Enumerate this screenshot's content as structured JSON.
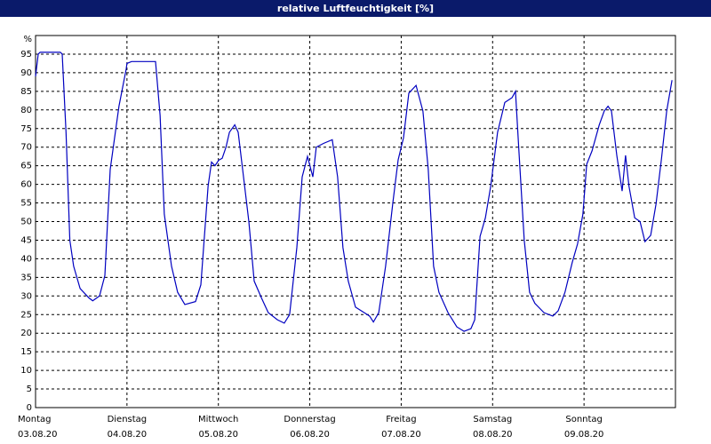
{
  "chart_data": {
    "type": "line",
    "title": "relative Luftfeuchtigkeit [%]",
    "y_label": "%",
    "xlim": [
      0,
      168
    ],
    "ylim": [
      0,
      100
    ],
    "yticks": [
      0,
      5,
      10,
      15,
      20,
      25,
      30,
      35,
      40,
      45,
      50,
      55,
      60,
      65,
      70,
      75,
      80,
      85,
      90,
      95
    ],
    "xticks": [
      {
        "value": 0,
        "label": "Montag",
        "date": "03.08.20"
      },
      {
        "value": 24,
        "label": "Dienstag",
        "date": "04.08.20"
      },
      {
        "value": 48,
        "label": "Mittwoch",
        "date": "05.08.20"
      },
      {
        "value": 72,
        "label": "Donnerstag",
        "date": "06.08.20"
      },
      {
        "value": 96,
        "label": "Freitag",
        "date": "07.08.20"
      },
      {
        "value": 120,
        "label": "Samstag",
        "date": "08.08.20"
      },
      {
        "value": 144,
        "label": "Sonntag",
        "date": "09.08.20"
      }
    ],
    "grid": true,
    "series": [
      {
        "color": "#0000c0",
        "x": [
          0,
          0.7,
          1.2,
          6.5,
          7,
          8,
          9,
          10,
          11.7,
          14,
          15,
          16.8,
          18.2,
          19.6,
          21.9,
          23.8,
          24,
          25.2,
          31.5,
          32.7,
          33.8,
          35.7,
          37.3,
          39.2,
          42,
          43.4,
          45.3,
          46.2,
          47.1,
          48.1,
          49,
          50,
          50.9,
          52.3,
          53.2,
          54.6,
          56,
          57.4,
          59.3,
          61.1,
          63.5,
          65.3,
          66.7,
          68.6,
          70,
          71.4,
          72.8,
          73.7,
          75.6,
          77.9,
          79.3,
          80.7,
          82.1,
          84,
          86.3,
          87.7,
          88.7,
          90.1,
          91.9,
          93.8,
          95.2,
          96.6,
          98,
          99.9,
          101.7,
          103.1,
          104.5,
          105.9,
          108.3,
          110.6,
          112.5,
          114.3,
          115.3,
          116.7,
          118.1,
          119.5,
          121.3,
          123.2,
          125.1,
          126,
          126.9,
          128.3,
          129.7,
          131.1,
          133.5,
          135.8,
          137.2,
          139,
          140.9,
          142.3,
          143.7,
          144.7,
          146.1,
          148,
          149.3,
          150.3,
          151.2,
          152.6,
          154,
          154.9,
          155.8,
          157.3,
          158.7,
          160,
          161.5,
          162.9,
          164.3,
          165.7,
          167.1
        ],
        "values": [
          89,
          95,
          95.5,
          95.5,
          95,
          74,
          45,
          38,
          32,
          29.5,
          28.7,
          30,
          35.5,
          64,
          81,
          91,
          92.5,
          93,
          93,
          78.5,
          52,
          38,
          31,
          27.7,
          28.5,
          33,
          59.5,
          66,
          65,
          66.5,
          67,
          70,
          74,
          76,
          74,
          62,
          50,
          34,
          29.5,
          25.5,
          23.6,
          22.7,
          25,
          43,
          62,
          67.5,
          62,
          70,
          71,
          72,
          62,
          43,
          34,
          27,
          25.5,
          24.6,
          23,
          25.5,
          38,
          55,
          66.6,
          72.5,
          84.5,
          86.6,
          79.7,
          64,
          38,
          31,
          25.5,
          21.7,
          20.5,
          21.2,
          23.6,
          46,
          51,
          59.5,
          74,
          82,
          83.3,
          85,
          69,
          45,
          31,
          28,
          25.5,
          24.6,
          26,
          31,
          39,
          44,
          52,
          65.4,
          69,
          76,
          79.7,
          81,
          79.7,
          67.8,
          58.2,
          67.8,
          59.5,
          51,
          50,
          44.6,
          46.3,
          54.7,
          66.6,
          79.7,
          88
        ]
      }
    ]
  }
}
